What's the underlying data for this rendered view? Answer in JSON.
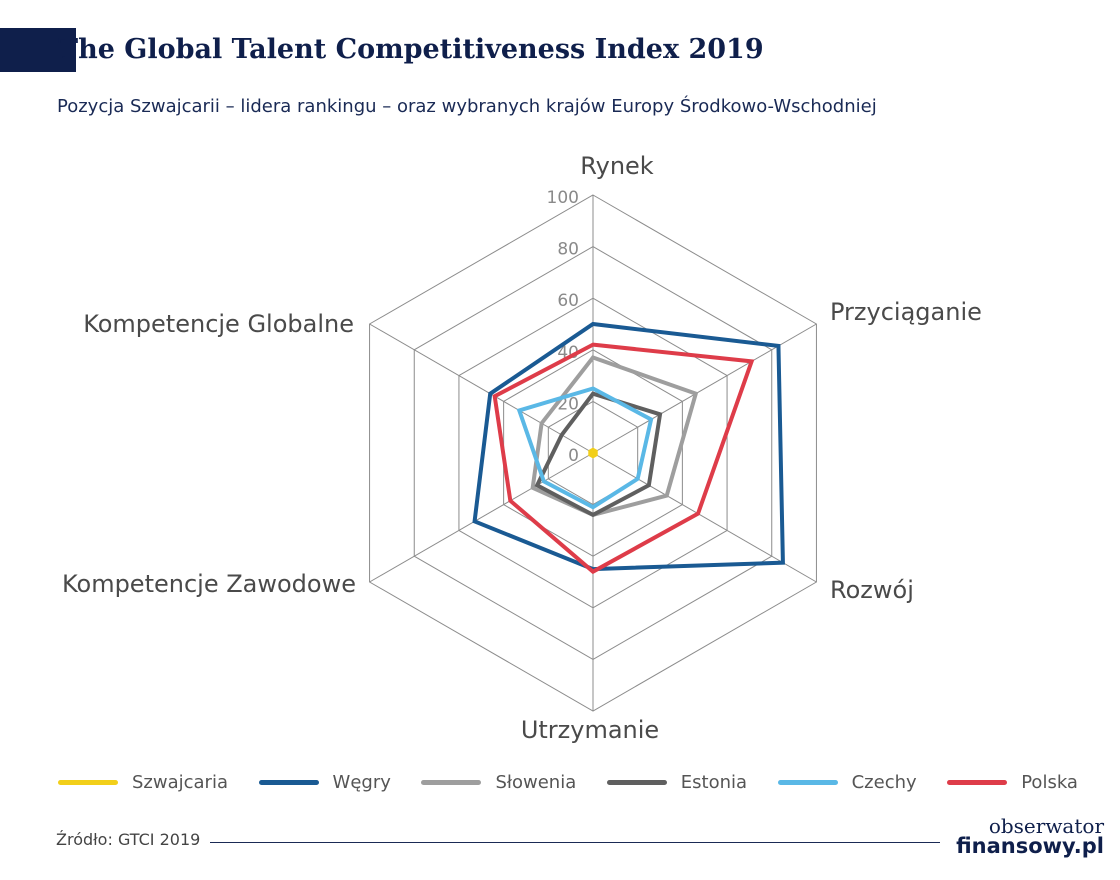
{
  "header": {
    "title": "The Global Talent Competitiveness Index 2019",
    "subtitle": "Pozycja Szwajcarii – lidera rankingu – oraz wybranych krajów Europy Środkowo-Wschodniej"
  },
  "chart_data": {
    "type": "radar",
    "title": "The Global Talent Competitiveness Index 2019",
    "subtitle": "Pozycja Szwajcarii – lidera rankingu – oraz wybranych krajów Europy Środkowo-Wschodniej",
    "axes": [
      "Rynek",
      "Przyciąganie",
      "Rozwój",
      "Utrzymanie",
      "Kompetencje Zawodowe",
      "Kompetencje Globalne"
    ],
    "rlim": [
      0,
      100
    ],
    "ticks": [
      0,
      20,
      40,
      60,
      80,
      100
    ],
    "grid": true,
    "legend_position": "bottom",
    "series": [
      {
        "name": "Szwajcaria",
        "color": "#f2cf1a",
        "values": [
          1,
          1,
          1,
          1,
          1,
          1
        ]
      },
      {
        "name": "Węgry",
        "color": "#1a5a93",
        "values": [
          50,
          83,
          85,
          45,
          53,
          46
        ]
      },
      {
        "name": "Słowenia",
        "color": "#9e9e9e",
        "values": [
          37,
          46,
          33,
          24,
          27,
          23
        ]
      },
      {
        "name": "Estonia",
        "color": "#5f5f5f",
        "values": [
          23,
          30,
          25,
          24,
          25,
          14
        ]
      },
      {
        "name": "Czechy",
        "color": "#5ab8e6",
        "values": [
          25,
          26,
          20,
          21,
          22,
          33
        ]
      },
      {
        "name": "Polska",
        "color": "#de3c49",
        "values": [
          42,
          71,
          47,
          46,
          37,
          44
        ]
      }
    ]
  },
  "footer": {
    "source": "Źródło: GTCI 2019",
    "logo_line1": "obserwator",
    "logo_line2": "finansowy.pl"
  }
}
